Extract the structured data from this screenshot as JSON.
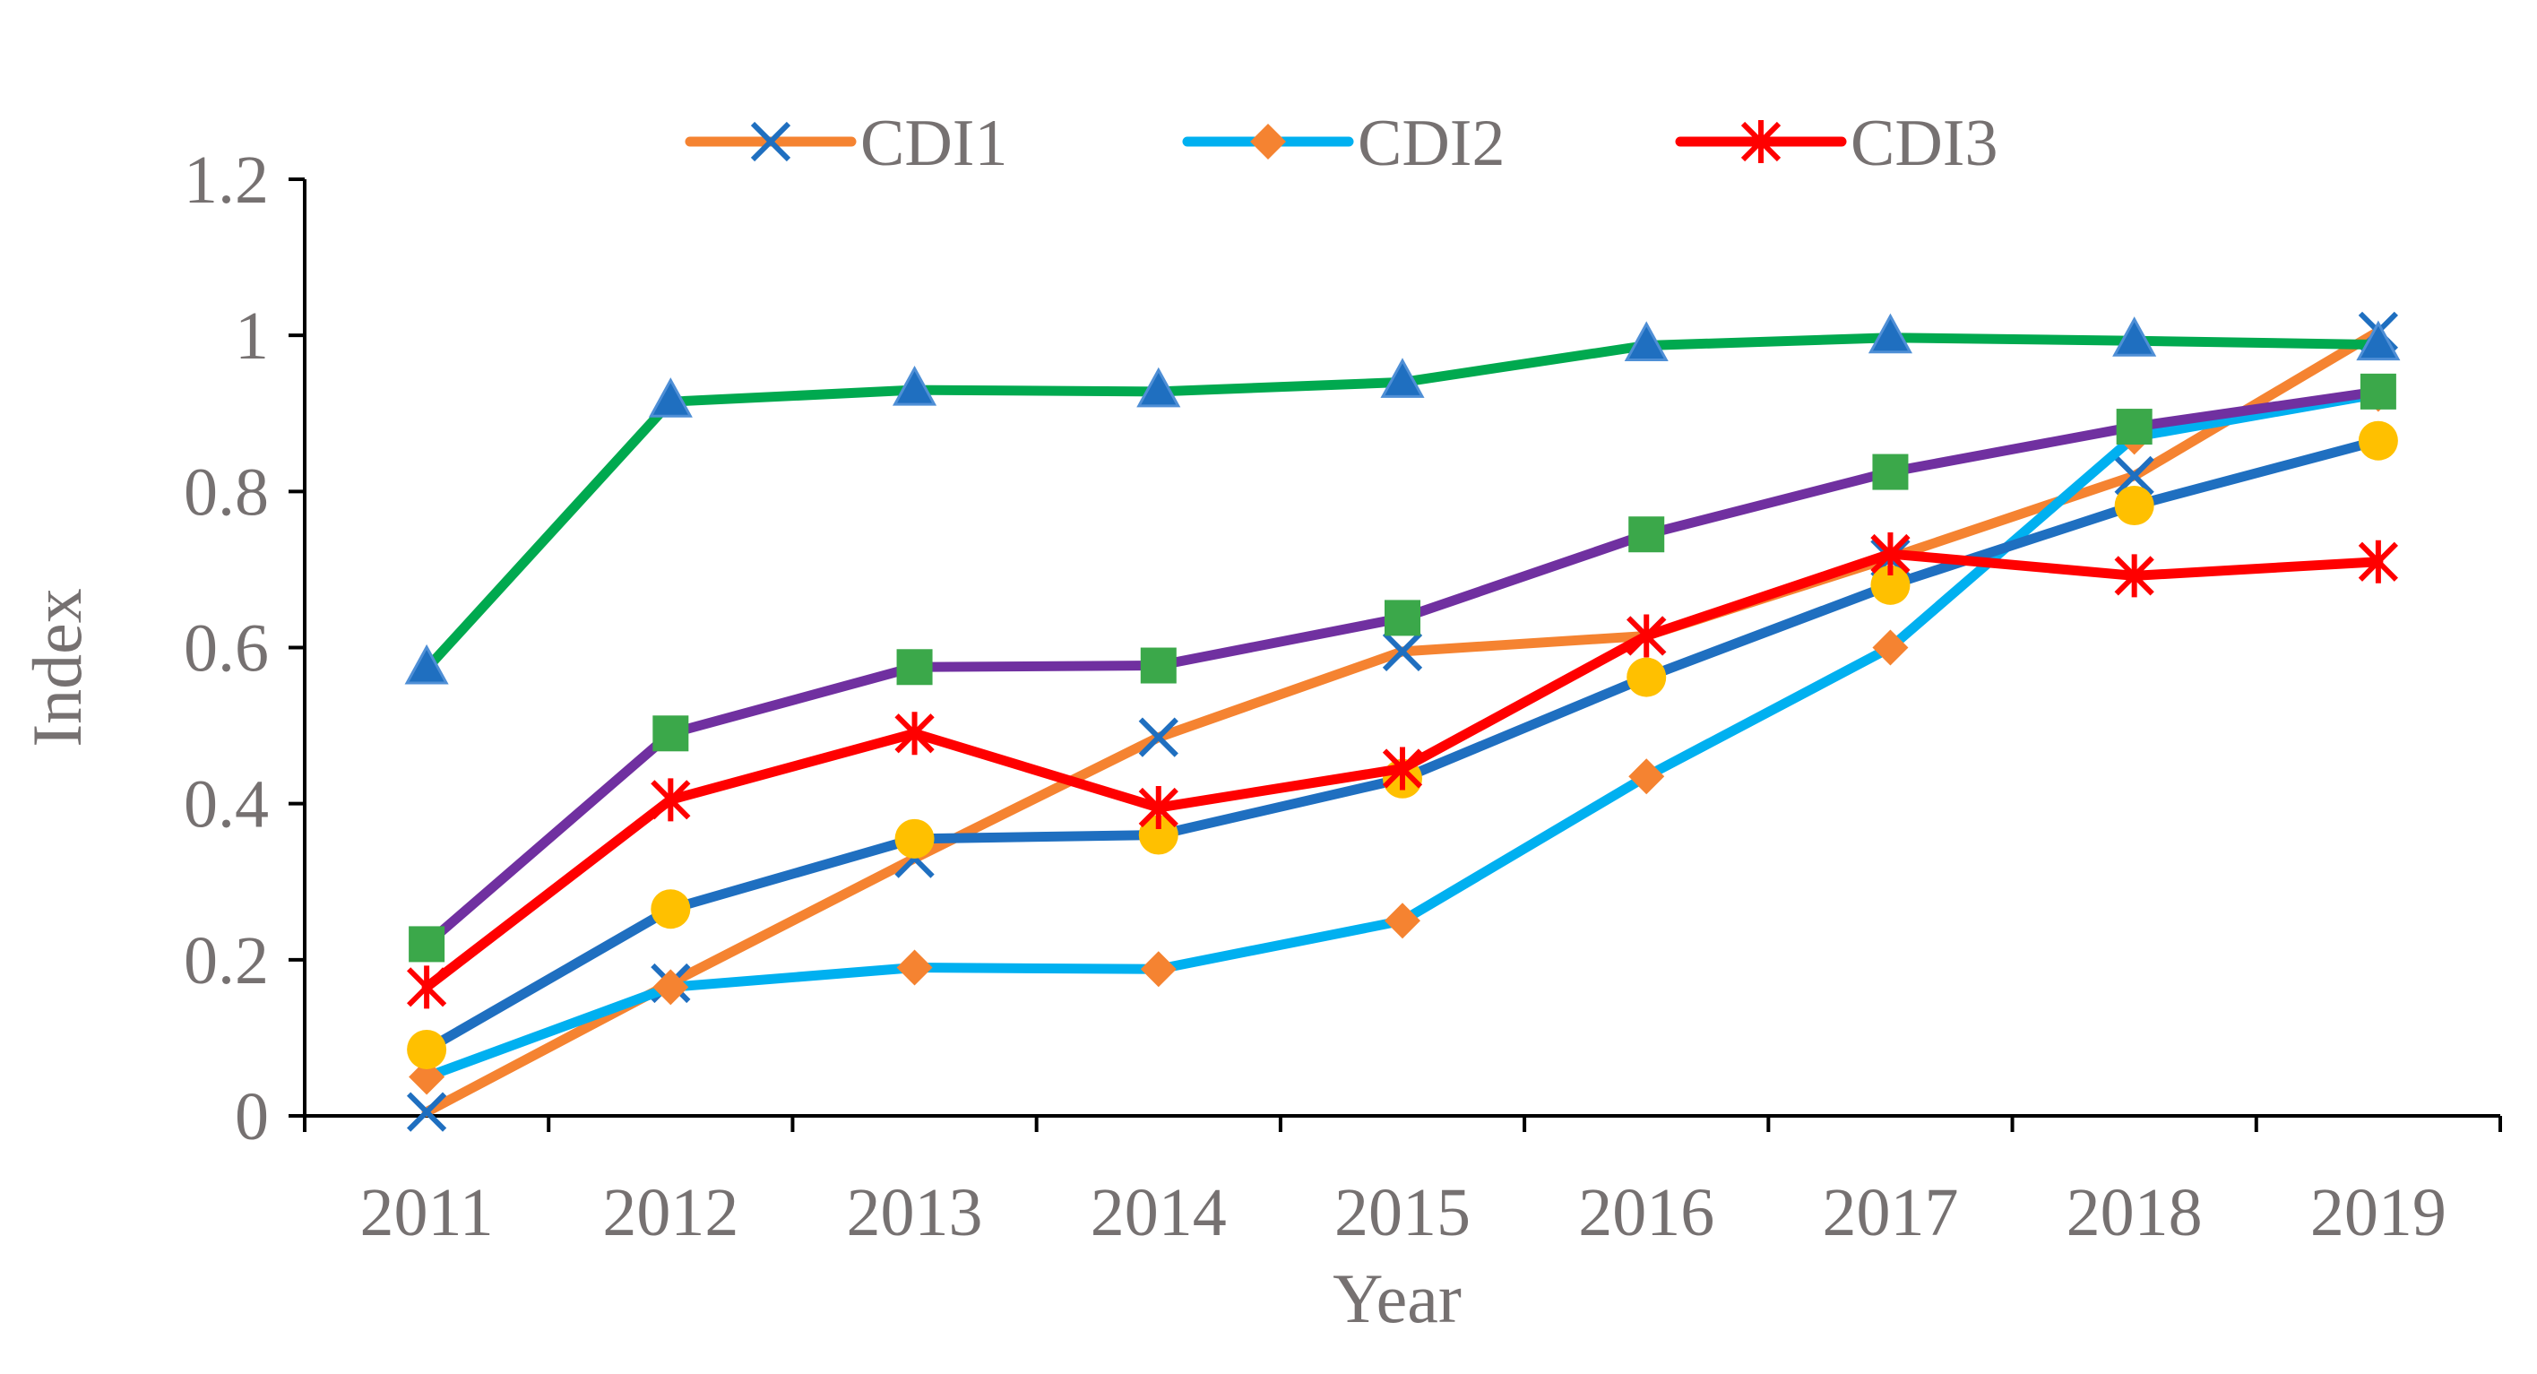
{
  "chart_data": {
    "type": "line",
    "xlabel": "Year",
    "ylabel": "Index",
    "categories": [
      "2011",
      "2012",
      "2013",
      "2014",
      "2015",
      "2016",
      "2017",
      "2018",
      "2019"
    ],
    "ylim": [
      0,
      1.2
    ],
    "yticks": [
      "0",
      "0.2",
      "0.4",
      "0.6",
      "0.8",
      "1",
      "1.2"
    ],
    "grid": false,
    "legend_position": "top",
    "series": [
      {
        "name": "CDI1",
        "line_color": "#F58331",
        "marker": "x",
        "marker_color": "#1F6FC0",
        "values": [
          0.005,
          0.17,
          0.33,
          0.485,
          0.595,
          0.615,
          0.715,
          0.82,
          1.005
        ]
      },
      {
        "name": "CDI2",
        "line_color": "#00B0F0",
        "marker": "diamond",
        "marker_color": "#F58331",
        "values": [
          0.05,
          0.165,
          0.19,
          0.188,
          0.25,
          0.435,
          0.6,
          0.87,
          0.925
        ]
      },
      {
        "name": "CDI3",
        "line_color": "#FF0000",
        "marker": "asterisk",
        "marker_color": "#FF0000",
        "values": [
          0.165,
          0.405,
          0.49,
          0.395,
          0.445,
          0.615,
          0.72,
          0.692,
          0.71
        ]
      },
      {
        "line_color": "#1F6FC0",
        "marker": "circle",
        "marker_color": "#FFC000",
        "values": [
          0.085,
          0.265,
          0.355,
          0.36,
          0.432,
          0.562,
          0.68,
          0.782,
          0.865
        ]
      },
      {
        "line_color": "#7030A0",
        "marker": "square",
        "marker_color": "#3BA84A",
        "values": [
          0.22,
          0.49,
          0.575,
          0.577,
          0.638,
          0.745,
          0.825,
          0.883,
          0.928
        ]
      },
      {
        "line_color": "#00A94F",
        "marker": "triangle",
        "marker_color": "#1F6FC0",
        "values": [
          0.573,
          0.915,
          0.93,
          0.928,
          0.94,
          0.987,
          0.997,
          0.993,
          0.988
        ]
      }
    ]
  }
}
